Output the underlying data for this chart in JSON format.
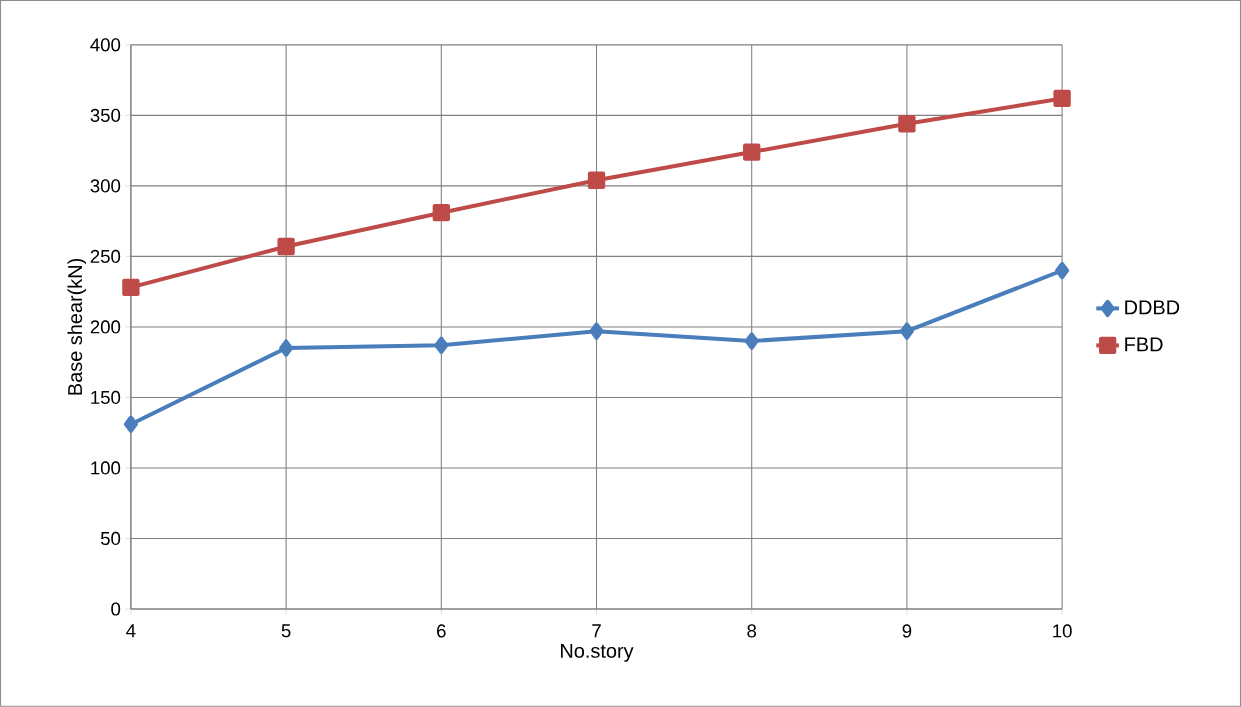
{
  "chart_data": {
    "type": "line",
    "xlabel": "No.story",
    "ylabel": "Base shear(kN)",
    "categories": [
      "4",
      "5",
      "6",
      "7",
      "8",
      "9",
      "10"
    ],
    "series": [
      {
        "name": "DDBD",
        "color": "#4a7ebb",
        "marker": "diamond",
        "values": [
          131,
          185,
          187,
          197,
          190,
          197,
          240
        ]
      },
      {
        "name": "FBD",
        "color": "#be4b48",
        "marker": "square",
        "values": [
          228,
          257,
          281,
          304,
          324,
          344,
          362
        ]
      }
    ],
    "ylim": [
      0,
      400
    ],
    "yticks": [
      0,
      50,
      100,
      150,
      200,
      250,
      300,
      350,
      400
    ],
    "grid": true,
    "legend": "right"
  }
}
